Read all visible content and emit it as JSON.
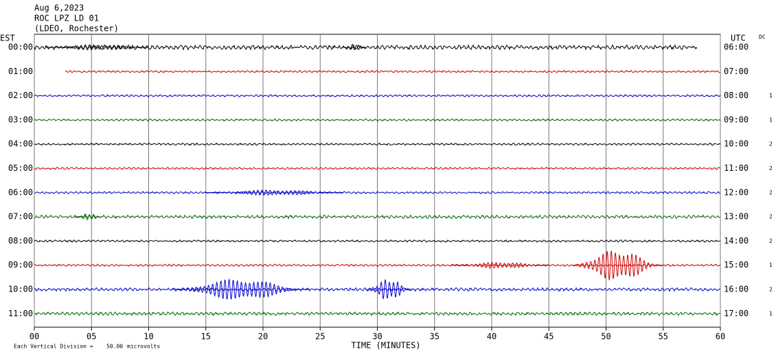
{
  "chart_data": {
    "type": "helicorder",
    "header": [
      "Aug 6,2023",
      "ROC LPZ LD 01",
      "(LDEO, Rochester)"
    ],
    "left_zone": "EST",
    "right_zone": "UTC",
    "dc_label": "DC",
    "xlabel": "TIME (MINUTES)",
    "xlim": [
      0,
      60
    ],
    "xticks": [
      {
        "value": 0,
        "label": "00"
      },
      {
        "value": 5,
        "label": "05"
      },
      10,
      15,
      20,
      25,
      30,
      35,
      40,
      45,
      50,
      55,
      60
    ],
    "grid": true,
    "scale_text": "Each Vertical Division =",
    "scale": {
      "value": 50,
      "label": "50.00"
    },
    "scale_unit": "microvolts",
    "rows": [
      {
        "left": "00:00",
        "right": "06:00",
        "dc": null,
        "color": "#000000",
        "start": 0,
        "end": 58,
        "noise": 4,
        "bursts": [
          {
            "start": 1,
            "end": 10,
            "amplitude": 6
          },
          {
            "start": 27,
            "end": 29,
            "amplitude": 7
          }
        ]
      },
      {
        "left": "01:00",
        "right": "07:00",
        "dc": null,
        "color": "#cc0000",
        "start": 2.7,
        "end": 60,
        "noise": 2,
        "bursts": []
      },
      {
        "left": "02:00",
        "right": "08:00",
        "dc": "1",
        "color": "#0000cc",
        "start": 0,
        "end": 60,
        "noise": 2,
        "bursts": []
      },
      {
        "left": "03:00",
        "right": "09:00",
        "dc": "1",
        "color": "#006600",
        "start": 0,
        "end": 60,
        "noise": 2,
        "bursts": []
      },
      {
        "left": "04:00",
        "right": "10:00",
        "dc": "2",
        "color": "#000000",
        "start": 0,
        "end": 60,
        "noise": 2,
        "bursts": []
      },
      {
        "left": "05:00",
        "right": "11:00",
        "dc": "2",
        "color": "#cc0000",
        "start": 0,
        "end": 60,
        "noise": 2,
        "bursts": []
      },
      {
        "left": "06:00",
        "right": "12:00",
        "dc": "2",
        "color": "#0000cc",
        "start": 0,
        "end": 60,
        "noise": 2,
        "bursts": [
          {
            "start": 15,
            "end": 27,
            "amplitude": 6
          }
        ]
      },
      {
        "left": "07:00",
        "right": "13:00",
        "dc": "2",
        "color": "#006600",
        "start": 0,
        "end": 60,
        "noise": 3,
        "bursts": [
          {
            "start": 3.5,
            "end": 6,
            "amplitude": 7
          }
        ]
      },
      {
        "left": "08:00",
        "right": "14:00",
        "dc": "2",
        "color": "#000000",
        "start": 0,
        "end": 60,
        "noise": 2,
        "bursts": []
      },
      {
        "left": "09:00",
        "right": "15:00",
        "dc": "1",
        "color": "#cc0000",
        "start": 0,
        "end": 60,
        "noise": 2,
        "bursts": [
          {
            "start": 36.5,
            "end": 45,
            "amplitude": 7
          },
          {
            "start": 47,
            "end": 55,
            "amplitude": 34
          }
        ]
      },
      {
        "left": "10:00",
        "right": "16:00",
        "dc": "2",
        "color": "#0000cc",
        "start": 0,
        "end": 60,
        "noise": 3,
        "bursts": [
          {
            "start": 12,
            "end": 24,
            "amplitude": 23
          },
          {
            "start": 29,
            "end": 33,
            "amplitude": 23
          }
        ]
      },
      {
        "left": "11:00",
        "right": "17:00",
        "dc": "1",
        "color": "#006600",
        "start": 0,
        "end": 60,
        "noise": 3,
        "bursts": []
      }
    ]
  }
}
